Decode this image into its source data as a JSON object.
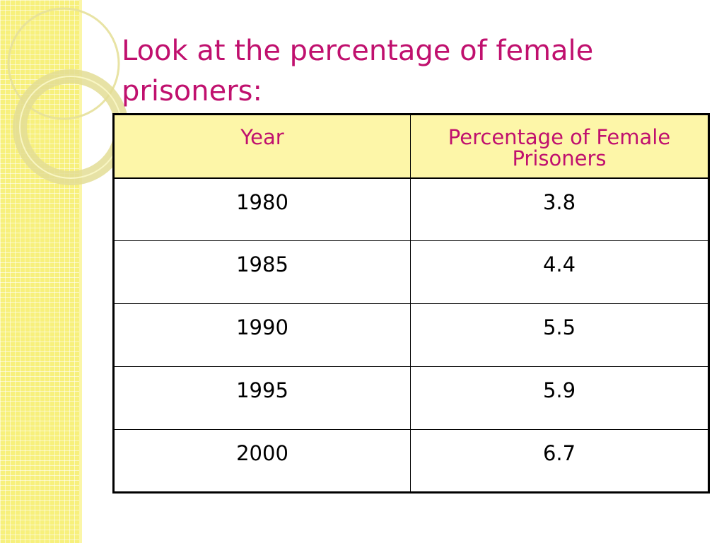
{
  "slide": {
    "title": "Look at the percentage of female prisoners:"
  },
  "table": {
    "headers": [
      "Year",
      "Percentage of Female Prisoners"
    ],
    "rows": [
      [
        "1980",
        "3.8"
      ],
      [
        "1985",
        "4.4"
      ],
      [
        "1990",
        "5.5"
      ],
      [
        "1995",
        "5.9"
      ],
      [
        "2000",
        "6.7"
      ]
    ]
  },
  "colors": {
    "title": "#c0106e",
    "header_bg": "#fdf6a8",
    "side_strip": "#f7f07c",
    "border": "#000000"
  }
}
